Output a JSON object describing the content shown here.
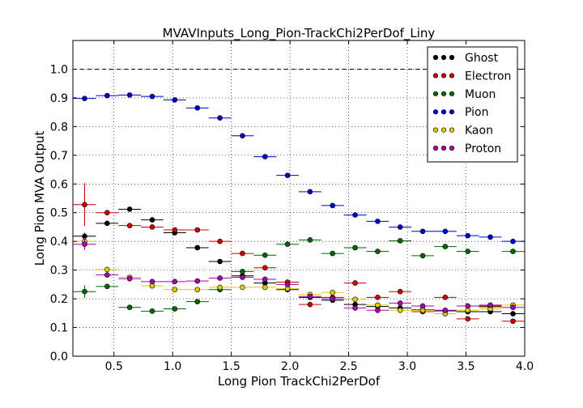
{
  "chart_data": {
    "type": "scatter",
    "title": "MVAVInputs_Long_Pion-TrackChi2PerDof_Liny",
    "xlabel": "Long Pion TrackChi2PerDof",
    "ylabel": "Long Pion MVA Output",
    "xlim": [
      0.15,
      4.0
    ],
    "ylim": [
      0.0,
      1.1
    ],
    "xticks": [
      "0.5",
      "1.0",
      "1.5",
      "2.0",
      "2.5",
      "3.0",
      "3.5",
      "4.0"
    ],
    "yticks": [
      "0.0",
      "0.1",
      "0.2",
      "0.3",
      "0.4",
      "0.5",
      "0.6",
      "0.7",
      "0.8",
      "0.9",
      "1.0"
    ],
    "grid": true,
    "reference_line": 1.0,
    "legend_position": "top-right",
    "x": [
      0.25,
      0.442,
      0.634,
      0.826,
      1.018,
      1.211,
      1.403,
      1.595,
      1.787,
      1.979,
      2.171,
      2.363,
      2.555,
      2.747,
      2.939,
      3.131,
      3.323,
      3.515,
      3.707,
      3.9
    ],
    "xerr": 0.096,
    "series": [
      {
        "name": "Ghost",
        "color": "#000000",
        "values": [
          0.418,
          0.463,
          0.512,
          0.475,
          0.43,
          0.378,
          0.33,
          0.28,
          0.255,
          0.232,
          0.205,
          0.195,
          0.18,
          0.173,
          0.168,
          0.162,
          0.158,
          0.155,
          0.155,
          0.148
        ],
        "yerr": [
          0.012,
          0.006,
          0.005,
          0.005,
          0.004,
          0.004,
          0.004,
          0.004,
          0.004,
          0.004,
          0.004,
          0.004,
          0.004,
          0.004,
          0.004,
          0.004,
          0.004,
          0.004,
          0.004,
          0.005
        ]
      },
      {
        "name": "Electron",
        "color": "#cc0000",
        "values": [
          0.528,
          0.5,
          0.455,
          0.45,
          0.44,
          0.44,
          0.4,
          0.358,
          0.308,
          0.258,
          0.18,
          0.205,
          0.255,
          0.205,
          0.225,
          0.155,
          0.205,
          0.13,
          0.175,
          0.122
        ],
        "yerr": [
          0.075,
          0.006,
          0.005,
          0.005,
          0.004,
          0.004,
          0.004,
          0.004,
          0.004,
          0.004,
          0.004,
          0.004,
          0.004,
          0.004,
          0.004,
          0.004,
          0.004,
          0.004,
          0.004,
          0.005
        ]
      },
      {
        "name": "Muon",
        "color": "#006600",
        "values": [
          0.225,
          0.243,
          0.17,
          0.157,
          0.165,
          0.19,
          0.232,
          0.295,
          0.352,
          0.39,
          0.405,
          0.358,
          0.378,
          0.365,
          0.402,
          0.35,
          0.382,
          0.365,
          0.172,
          0.365
        ],
        "yerr": [
          0.022,
          0.006,
          0.005,
          0.005,
          0.004,
          0.004,
          0.004,
          0.004,
          0.004,
          0.004,
          0.004,
          0.004,
          0.004,
          0.004,
          0.004,
          0.004,
          0.004,
          0.004,
          0.004,
          0.005
        ]
      },
      {
        "name": "Pion",
        "color": "#0000cc",
        "values": [
          0.898,
          0.908,
          0.91,
          0.905,
          0.893,
          0.865,
          0.83,
          0.768,
          0.695,
          0.63,
          0.573,
          0.525,
          0.492,
          0.47,
          0.45,
          0.435,
          0.435,
          0.42,
          0.415,
          0.4
        ],
        "yerr": [
          0.005,
          0.004,
          0.003,
          0.003,
          0.003,
          0.003,
          0.003,
          0.003,
          0.003,
          0.003,
          0.003,
          0.003,
          0.003,
          0.003,
          0.003,
          0.003,
          0.003,
          0.003,
          0.003,
          0.003
        ]
      },
      {
        "name": "Kaon",
        "color": "#ddcc00",
        "values": [
          0.4,
          0.302,
          0.275,
          0.245,
          0.232,
          0.232,
          0.24,
          0.24,
          0.24,
          0.235,
          0.215,
          0.222,
          0.198,
          0.178,
          0.16,
          0.16,
          0.148,
          0.16,
          0.165,
          0.178
        ],
        "yerr": [
          0.012,
          0.006,
          0.005,
          0.005,
          0.004,
          0.004,
          0.004,
          0.004,
          0.004,
          0.004,
          0.004,
          0.004,
          0.004,
          0.004,
          0.004,
          0.004,
          0.004,
          0.004,
          0.004,
          0.005
        ]
      },
      {
        "name": "Proton",
        "color": "#aa00aa",
        "values": [
          0.39,
          0.283,
          0.27,
          0.26,
          0.26,
          0.262,
          0.272,
          0.275,
          0.268,
          0.25,
          0.208,
          0.2,
          0.168,
          0.16,
          0.185,
          0.175,
          0.16,
          0.175,
          0.178,
          0.17
        ],
        "yerr": [
          0.02,
          0.006,
          0.005,
          0.005,
          0.004,
          0.004,
          0.004,
          0.004,
          0.004,
          0.004,
          0.004,
          0.004,
          0.004,
          0.004,
          0.004,
          0.004,
          0.004,
          0.004,
          0.004,
          0.005
        ]
      }
    ]
  }
}
